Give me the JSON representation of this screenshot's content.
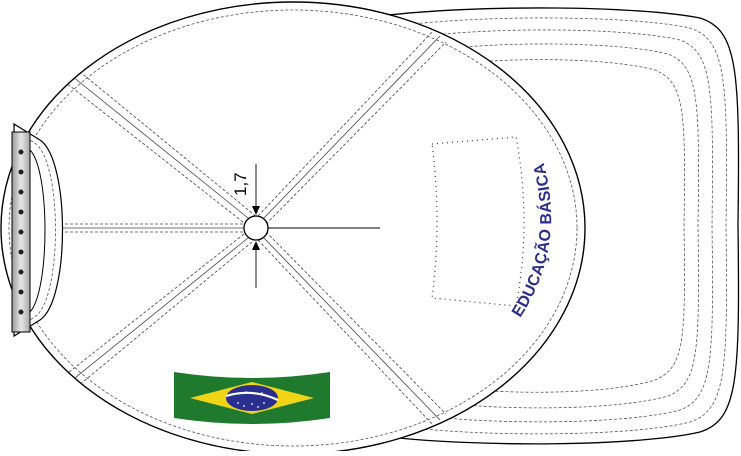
{
  "diagram": {
    "measurement": {
      "label": "1,7"
    },
    "embroidery": {
      "text": "EDUCAÇÃO BÁSICA",
      "color": "#2b2f8a"
    },
    "flag": {
      "name": "brazil-flag",
      "green": "#1f7a2e",
      "yellow": "#f2d416",
      "blue": "#2a2f8f"
    },
    "colors": {
      "outline": "#000000",
      "fill": "#ffffff",
      "stitch": "#555555"
    }
  }
}
